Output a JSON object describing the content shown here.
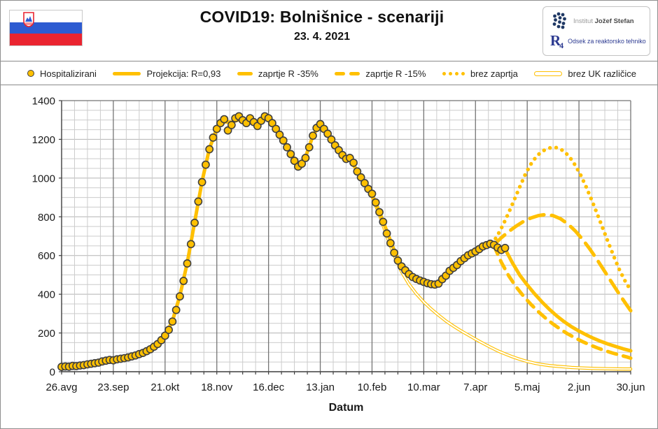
{
  "header": {
    "title": "COVID19: Bolnišnice - scenariji",
    "subtitle": "23. 4. 2021",
    "flag_colors": {
      "white": "#ffffff",
      "blue": "#2d5bd1",
      "red": "#ea2430"
    },
    "logo": {
      "institute_light": "Institut",
      "institute_bold": "Jožef Stefan",
      "r4": "R",
      "r4_sub": "4",
      "department": "Odsek za reaktorsko tehniko",
      "navy": "#1f3864",
      "blue": "#2b3990"
    }
  },
  "legend": {
    "swatch_types": [
      "marker",
      "solid",
      "dash-short",
      "dash-long",
      "dotted",
      "tube"
    ]
  },
  "chart_data": {
    "type": "line",
    "title": "COVID19: Bolnišnice - scenariji",
    "subtitle": "23. 4. 2021",
    "xlabel": "Datum",
    "ylabel": "",
    "ylim": [
      0,
      1400
    ],
    "y_tick_step": 200,
    "y_minor_step": 50,
    "x_range_days": [
      0,
      308
    ],
    "x_minor_step_days": 7,
    "x_major_step_days": 28,
    "grid": {
      "minor_color": "#cccccc",
      "major_h_color": "#b3b3b3",
      "major_v_color": "#757575",
      "axis_color": "#3f3f3f",
      "border_color": "#757575"
    },
    "accent_color": "#FFC000",
    "marker_outline_color": "#3f3f3f",
    "y_ticks": [
      0,
      200,
      400,
      600,
      800,
      1000,
      1200,
      1400
    ],
    "x_ticks": [
      {
        "day": 0,
        "label": "26.avg"
      },
      {
        "day": 28,
        "label": "23.sep"
      },
      {
        "day": 56,
        "label": "21.okt"
      },
      {
        "day": 84,
        "label": "18.nov"
      },
      {
        "day": 112,
        "label": "16.dec"
      },
      {
        "day": 140,
        "label": "13.jan"
      },
      {
        "day": 168,
        "label": "10.feb"
      },
      {
        "day": 196,
        "label": "10.mar"
      },
      {
        "day": 224,
        "label": "7.apr"
      },
      {
        "day": 252,
        "label": "5.maj"
      },
      {
        "day": 280,
        "label": "2.jun"
      },
      {
        "day": 308,
        "label": "30.jun"
      }
    ],
    "series": [
      {
        "name": "Hospitalizirani",
        "type": "scatter",
        "points": [
          [
            0,
            25
          ],
          [
            2,
            27
          ],
          [
            4,
            26
          ],
          [
            6,
            30
          ],
          [
            8,
            29
          ],
          [
            10,
            32
          ],
          [
            12,
            34
          ],
          [
            14,
            38
          ],
          [
            16,
            41
          ],
          [
            18,
            44
          ],
          [
            20,
            47
          ],
          [
            22,
            53
          ],
          [
            24,
            57
          ],
          [
            26,
            61
          ],
          [
            28,
            59
          ],
          [
            30,
            64
          ],
          [
            32,
            67
          ],
          [
            34,
            70
          ],
          [
            36,
            74
          ],
          [
            38,
            79
          ],
          [
            40,
            84
          ],
          [
            42,
            91
          ],
          [
            44,
            97
          ],
          [
            46,
            106
          ],
          [
            48,
            116
          ],
          [
            50,
            129
          ],
          [
            52,
            143
          ],
          [
            54,
            163
          ],
          [
            56,
            186
          ],
          [
            58,
            216
          ],
          [
            60,
            259
          ],
          [
            62,
            319
          ],
          [
            64,
            389
          ],
          [
            66,
            469
          ],
          [
            68,
            559
          ],
          [
            70,
            659
          ],
          [
            72,
            769
          ],
          [
            74,
            879
          ],
          [
            76,
            979
          ],
          [
            78,
            1069
          ],
          [
            80,
            1149
          ],
          [
            82,
            1209
          ],
          [
            84,
            1254
          ],
          [
            86,
            1284
          ],
          [
            88,
            1304
          ],
          [
            90,
            1246
          ],
          [
            92,
            1274
          ],
          [
            94,
            1309
          ],
          [
            96,
            1319
          ],
          [
            98,
            1299
          ],
          [
            100,
            1284
          ],
          [
            102,
            1309
          ],
          [
            104,
            1289
          ],
          [
            106,
            1269
          ],
          [
            108,
            1296
          ],
          [
            110,
            1319
          ],
          [
            112,
            1309
          ],
          [
            114,
            1284
          ],
          [
            116,
            1254
          ],
          [
            118,
            1224
          ],
          [
            120,
            1194
          ],
          [
            122,
            1159
          ],
          [
            124,
            1124
          ],
          [
            126,
            1089
          ],
          [
            128,
            1059
          ],
          [
            130,
            1074
          ],
          [
            132,
            1104
          ],
          [
            134,
            1159
          ],
          [
            136,
            1219
          ],
          [
            138,
            1259
          ],
          [
            140,
            1279
          ],
          [
            142,
            1254
          ],
          [
            144,
            1229
          ],
          [
            146,
            1199
          ],
          [
            148,
            1169
          ],
          [
            150,
            1144
          ],
          [
            152,
            1119
          ],
          [
            154,
            1099
          ],
          [
            156,
            1104
          ],
          [
            158,
            1079
          ],
          [
            160,
            1034
          ],
          [
            162,
            1004
          ],
          [
            164,
            974
          ],
          [
            166,
            944
          ],
          [
            168,
            919
          ],
          [
            170,
            874
          ],
          [
            172,
            824
          ],
          [
            174,
            774
          ],
          [
            176,
            714
          ],
          [
            178,
            664
          ],
          [
            180,
            614
          ],
          [
            182,
            574
          ],
          [
            184,
            544
          ],
          [
            186,
            524
          ],
          [
            188,
            504
          ],
          [
            190,
            489
          ],
          [
            192,
            479
          ],
          [
            194,
            471
          ],
          [
            196,
            464
          ],
          [
            198,
            457
          ],
          [
            200,
            452
          ],
          [
            202,
            450
          ],
          [
            204,
            455
          ],
          [
            206,
            478
          ],
          [
            208,
            496
          ],
          [
            210,
            521
          ],
          [
            212,
            536
          ],
          [
            214,
            551
          ],
          [
            216,
            571
          ],
          [
            218,
            586
          ],
          [
            220,
            601
          ],
          [
            222,
            611
          ],
          [
            224,
            621
          ],
          [
            226,
            633
          ],
          [
            228,
            647
          ],
          [
            230,
            654
          ],
          [
            232,
            661
          ],
          [
            234,
            655
          ],
          [
            236,
            641
          ],
          [
            238,
            629
          ],
          [
            240,
            639
          ]
        ]
      },
      {
        "name": "Projekcija: R=0,93",
        "type": "line",
        "style": "solid",
        "points": [
          [
            0,
            25
          ],
          [
            7,
            30
          ],
          [
            14,
            38
          ],
          [
            21,
            50
          ],
          [
            28,
            60
          ],
          [
            35,
            70
          ],
          [
            42,
            90
          ],
          [
            49,
            122
          ],
          [
            56,
            186
          ],
          [
            60,
            262
          ],
          [
            64,
            392
          ],
          [
            68,
            562
          ],
          [
            72,
            772
          ],
          [
            76,
            982
          ],
          [
            80,
            1152
          ],
          [
            84,
            1256
          ],
          [
            88,
            1292
          ],
          [
            92,
            1288
          ],
          [
            96,
            1302
          ],
          [
            100,
            1292
          ],
          [
            104,
            1288
          ],
          [
            108,
            1298
          ],
          [
            112,
            1308
          ],
          [
            116,
            1258
          ],
          [
            120,
            1198
          ],
          [
            124,
            1128
          ],
          [
            128,
            1068
          ],
          [
            132,
            1108
          ],
          [
            136,
            1218
          ],
          [
            140,
            1282
          ],
          [
            144,
            1232
          ],
          [
            148,
            1172
          ],
          [
            152,
            1122
          ],
          [
            156,
            1096
          ],
          [
            160,
            1038
          ],
          [
            164,
            976
          ],
          [
            168,
            916
          ],
          [
            172,
            826
          ],
          [
            176,
            726
          ],
          [
            180,
            626
          ],
          [
            184,
            546
          ],
          [
            188,
            506
          ],
          [
            192,
            478
          ],
          [
            196,
            462
          ],
          [
            200,
            452
          ],
          [
            204,
            456
          ],
          [
            208,
            492
          ],
          [
            212,
            532
          ],
          [
            216,
            568
          ],
          [
            220,
            598
          ],
          [
            224,
            620
          ],
          [
            228,
            642
          ],
          [
            232,
            656
          ],
          [
            236,
            648
          ],
          [
            240,
            634
          ],
          [
            244,
            562
          ],
          [
            248,
            498
          ],
          [
            252,
            448
          ],
          [
            256,
            402
          ],
          [
            260,
            360
          ],
          [
            264,
            322
          ],
          [
            268,
            288
          ],
          [
            272,
            258
          ],
          [
            276,
            232
          ],
          [
            280,
            210
          ],
          [
            284,
            190
          ],
          [
            288,
            172
          ],
          [
            292,
            156
          ],
          [
            296,
            142
          ],
          [
            300,
            130
          ],
          [
            304,
            118
          ],
          [
            308,
            108
          ]
        ]
      },
      {
        "name": "zaprtje R -35%",
        "type": "line",
        "style": "dash-short",
        "points": [
          [
            234,
            650
          ],
          [
            238,
            565
          ],
          [
            242,
            495
          ],
          [
            246,
            438
          ],
          [
            250,
            390
          ],
          [
            254,
            348
          ],
          [
            258,
            310
          ],
          [
            262,
            276
          ],
          [
            266,
            246
          ],
          [
            270,
            219
          ],
          [
            274,
            195
          ],
          [
            278,
            174
          ],
          [
            282,
            155
          ],
          [
            286,
            138
          ],
          [
            290,
            123
          ],
          [
            294,
            109
          ],
          [
            298,
            97
          ],
          [
            302,
            86
          ],
          [
            306,
            76
          ],
          [
            308,
            70
          ]
        ]
      },
      {
        "name": "zaprtje R -15%",
        "type": "line",
        "style": "dash-long",
        "points": [
          [
            234,
            655
          ],
          [
            238,
            692
          ],
          [
            242,
            724
          ],
          [
            246,
            752
          ],
          [
            250,
            776
          ],
          [
            254,
            794
          ],
          [
            258,
            806
          ],
          [
            262,
            812
          ],
          [
            266,
            806
          ],
          [
            270,
            790
          ],
          [
            274,
            763
          ],
          [
            278,
            727
          ],
          [
            282,
            683
          ],
          [
            286,
            632
          ],
          [
            290,
            576
          ],
          [
            294,
            517
          ],
          [
            298,
            457
          ],
          [
            302,
            398
          ],
          [
            306,
            342
          ],
          [
            308,
            315
          ]
        ]
      },
      {
        "name": "brez zaprtja",
        "type": "line",
        "style": "dotted",
        "points": [
          [
            233,
            660
          ],
          [
            236,
            705
          ],
          [
            239,
            760
          ],
          [
            242,
            822
          ],
          [
            245,
            888
          ],
          [
            248,
            955
          ],
          [
            251,
            1020
          ],
          [
            254,
            1072
          ],
          [
            257,
            1112
          ],
          [
            260,
            1138
          ],
          [
            263,
            1152
          ],
          [
            266,
            1160
          ],
          [
            269,
            1155
          ],
          [
            272,
            1138
          ],
          [
            275,
            1108
          ],
          [
            278,
            1066
          ],
          [
            281,
            1014
          ],
          [
            284,
            952
          ],
          [
            287,
            884
          ],
          [
            290,
            812
          ],
          [
            293,
            738
          ],
          [
            296,
            664
          ],
          [
            299,
            592
          ],
          [
            302,
            524
          ],
          [
            305,
            468
          ],
          [
            308,
            420
          ]
        ]
      },
      {
        "name": "brez UK različice",
        "type": "line",
        "style": "tube",
        "points": [
          [
            168,
            905
          ],
          [
            172,
            810
          ],
          [
            176,
            700
          ],
          [
            180,
            600
          ],
          [
            184,
            516
          ],
          [
            188,
            452
          ],
          [
            192,
            402
          ],
          [
            196,
            360
          ],
          [
            200,
            324
          ],
          [
            204,
            292
          ],
          [
            208,
            262
          ],
          [
            212,
            236
          ],
          [
            216,
            212
          ],
          [
            220,
            190
          ],
          [
            224,
            168
          ],
          [
            228,
            147
          ],
          [
            232,
            127
          ],
          [
            236,
            108
          ],
          [
            240,
            92
          ],
          [
            244,
            77
          ],
          [
            248,
            64
          ],
          [
            252,
            53
          ],
          [
            256,
            44
          ],
          [
            260,
            37
          ],
          [
            264,
            32
          ],
          [
            268,
            28
          ],
          [
            272,
            25
          ],
          [
            276,
            22
          ],
          [
            280,
            20
          ],
          [
            288,
            17
          ],
          [
            296,
            15
          ],
          [
            304,
            14
          ],
          [
            308,
            14
          ]
        ]
      }
    ]
  }
}
